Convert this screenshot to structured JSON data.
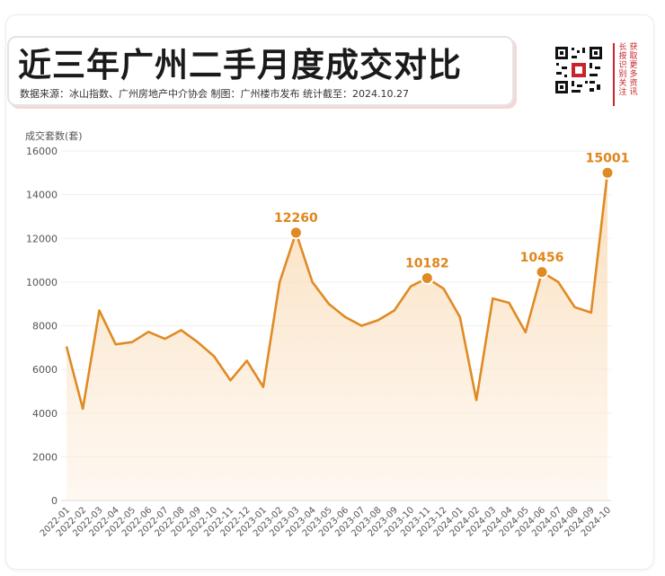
{
  "header": {
    "title": "近三年广州二手月度成交对比",
    "subtitle": "数据来源：冰山指数、广州房地产中介协会  制图：广州楼市发布  统计截至：2024.10.27"
  },
  "side": {
    "col1": "获取更多资讯",
    "col2": "长按识别关注"
  },
  "colors": {
    "line": "#e08a24",
    "fill": "#fbe2c4",
    "label": "#e0861c",
    "accent_red": "#c8242b"
  },
  "chart_data": {
    "type": "area",
    "title": "近三年广州二手月度成交对比",
    "ylabel": "成交套数(套)",
    "xlabel": "",
    "ylim": [
      0,
      16000
    ],
    "yticks": [
      0,
      2000,
      4000,
      6000,
      8000,
      10000,
      12000,
      14000,
      16000
    ],
    "grid": true,
    "x": [
      "2022-01",
      "2022-02",
      "2022-03",
      "2022-04",
      "2022-05",
      "2022-06",
      "2022-07",
      "2022-08",
      "2022-09",
      "2022-10",
      "2022-11",
      "2022-12",
      "2023-01",
      "2023-02",
      "2023-03",
      "2023-04",
      "2023-05",
      "2023-06",
      "2023-07",
      "2023-08",
      "2023-09",
      "2023-10",
      "2023-11",
      "2023-12",
      "2024-01",
      "2024-02",
      "2024-03",
      "2024-04",
      "2024-05",
      "2024-06",
      "2024-07",
      "2024-08",
      "2024-09",
      "2024-10"
    ],
    "values": [
      7050,
      4200,
      8700,
      7150,
      7250,
      7720,
      7400,
      7800,
      7250,
      6600,
      5500,
      6400,
      5200,
      10000,
      12260,
      10000,
      9000,
      8400,
      8000,
      8250,
      8700,
      9800,
      10182,
      9700,
      8400,
      4600,
      9250,
      9050,
      7700,
      10456,
      10000,
      8850,
      8600,
      15001
    ],
    "annotations": [
      {
        "index": 14,
        "label": "12260"
      },
      {
        "index": 22,
        "label": "10182"
      },
      {
        "index": 29,
        "label": "10456"
      },
      {
        "index": 33,
        "label": "15001"
      }
    ]
  }
}
